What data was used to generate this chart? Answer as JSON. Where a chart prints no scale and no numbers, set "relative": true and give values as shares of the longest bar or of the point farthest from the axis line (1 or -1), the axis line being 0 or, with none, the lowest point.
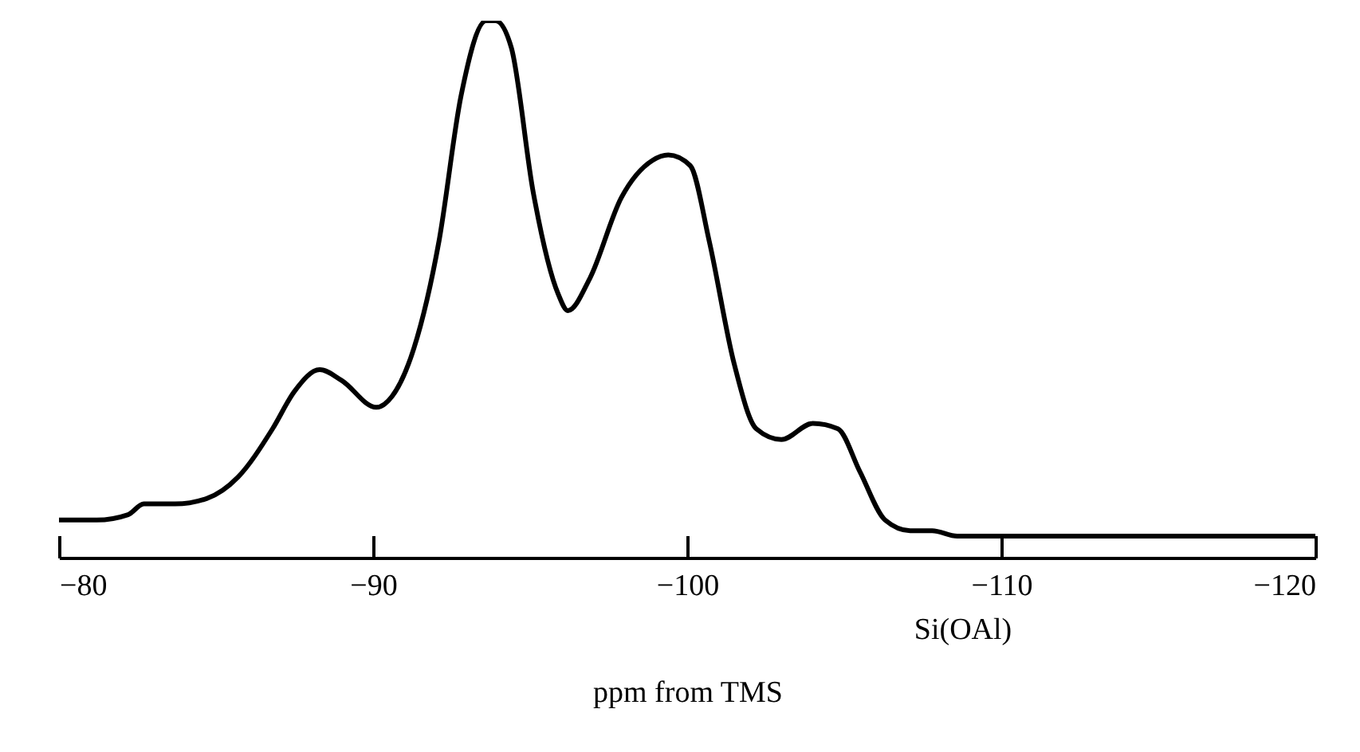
{
  "chart_data": {
    "type": "line",
    "xlabel": "ppm from TMS",
    "annotations": [
      "Si(OAl)"
    ],
    "relative": true,
    "x": [
      -80,
      -81.2,
      -82.2,
      -82.7,
      -83.7,
      -84.7,
      -85.7,
      -86.8,
      -87.5,
      -88.3,
      -89.0,
      -90.1,
      -90.6,
      -91.3,
      -92.1,
      -92.8,
      -93.6,
      -93.9,
      -94.4,
      -95.1,
      -95.9,
      -96.2,
      -96.9,
      -97.9,
      -98.9,
      -99.4,
      -100.1,
      -100.7,
      -101.5,
      -102.2,
      -103.0,
      -104.0,
      -104.8,
      -105.5,
      -106.3,
      -107.1,
      -107.8,
      -108.6,
      -111.1,
      -113.7,
      -116.2,
      -118.7,
      -120
    ],
    "values": [
      0.07,
      0.07,
      0.08,
      0.1,
      0.1,
      0.11,
      0.15,
      0.24,
      0.31,
      0.35,
      0.33,
      0.28,
      0.3,
      0.39,
      0.59,
      0.86,
      1.0,
      1.0,
      0.95,
      0.68,
      0.49,
      0.46,
      0.52,
      0.67,
      0.74,
      0.75,
      0.73,
      0.59,
      0.36,
      0.24,
      0.22,
      0.25,
      0.24,
      0.16,
      0.07,
      0.05,
      0.05,
      0.04,
      0.04,
      0.04,
      0.04,
      0.04,
      0.04
    ],
    "color": "#000000",
    "xlim": [
      -80,
      -120
    ],
    "xticks": [
      -80,
      -90,
      -100,
      -110,
      -120
    ]
  }
}
